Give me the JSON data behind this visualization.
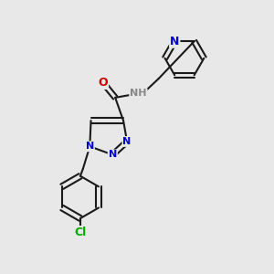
{
  "bg_color": "#e8e8e8",
  "bond_color": "#1a1a1a",
  "bond_width": 1.5,
  "atom_colors": {
    "N": "#0000cc",
    "O": "#cc0000",
    "Cl": "#00aa00",
    "H": "#888888"
  },
  "font_size_large": 9,
  "font_size_small": 8
}
